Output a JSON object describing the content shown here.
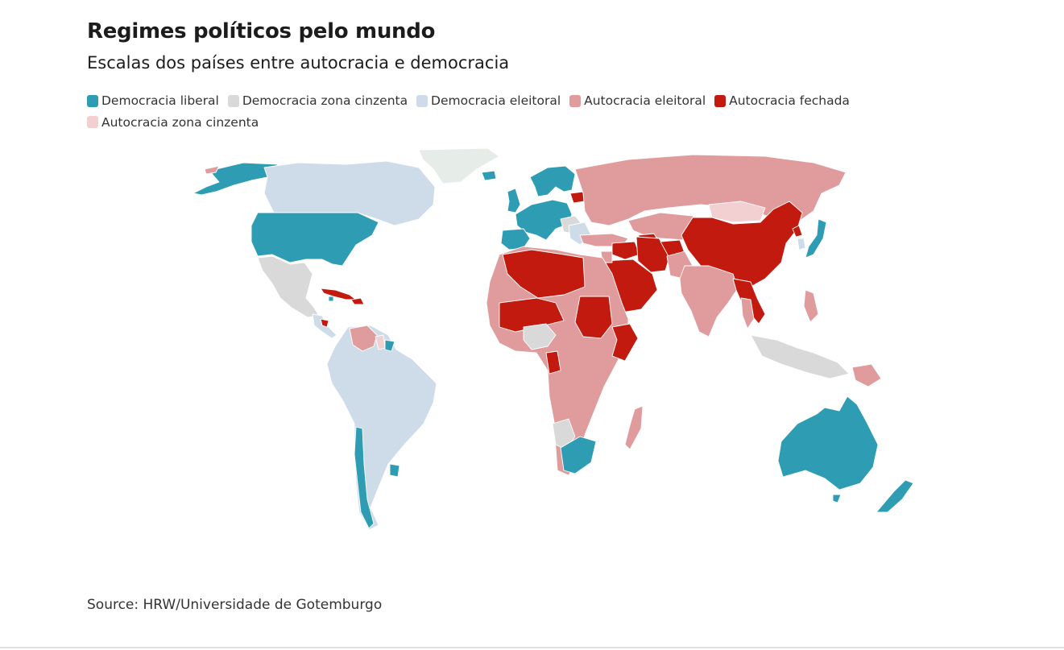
{
  "title": "Regimes políticos pelo mundo",
  "subtitle": "Escalas dos países entre autocracia e democracia",
  "legend": [
    {
      "label": "Democracia liberal",
      "color": "#2e9db3"
    },
    {
      "label": "Democracia zona cinzenta",
      "color": "#d9d9d9"
    },
    {
      "label": "Democracia eleitoral",
      "color": "#cddce8"
    },
    {
      "label": "Autocracia eleitoral",
      "color": "#e09b9d"
    },
    {
      "label": "Autocracia fechada",
      "color": "#c21a0f"
    },
    {
      "label": "Autocracia zona cinzenta",
      "color": "#f2cfd1"
    }
  ],
  "colors": {
    "no_data": "#e6ede9"
  },
  "source": "Source: HRW/Universidade de Gotemburgo"
}
